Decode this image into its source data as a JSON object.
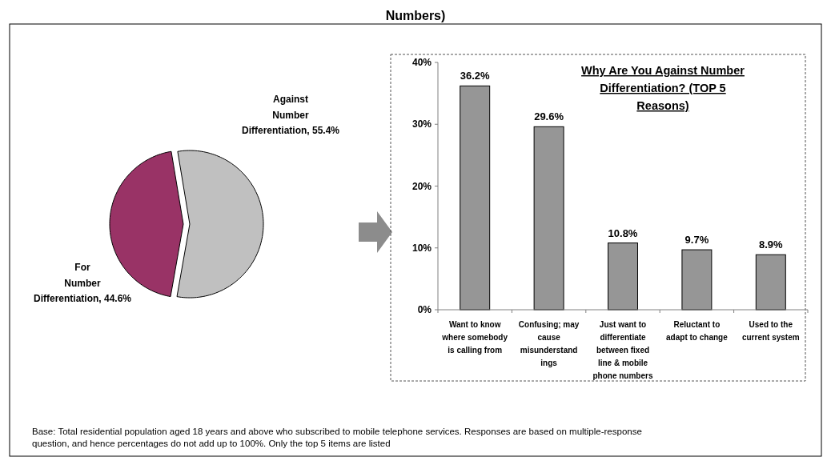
{
  "chart_data": [
    {
      "type": "pie",
      "annotations": [
        "Numbers)"
      ],
      "categories": [
        "For Number Differentiation",
        "Against Number Differentiation"
      ],
      "values": [
        44.6,
        55.4
      ],
      "value_labels": [
        "44.6%",
        "55.4%"
      ],
      "colors": [
        "#993366",
        "#c0c0c0"
      ]
    },
    {
      "type": "bar",
      "title": "Why Are You Against Number Differentiation? (TOP 5 Reasons)",
      "categories": [
        "Want to know where somebody is calling from",
        "Confusing; may cause misunderstand ings",
        "Just want to differentiate between fixed line & mobile phone numbers",
        "Reluctant to adapt to change",
        "Used to the current system"
      ],
      "values": [
        36.2,
        29.6,
        10.8,
        9.7,
        8.9
      ],
      "value_labels": [
        "36.2%",
        "29.6%",
        "10.8%",
        "9.7%",
        "8.9%"
      ],
      "color": "#969696",
      "ylim": [
        0,
        40
      ],
      "yticks": [
        {
          "value": 0,
          "label": "0%"
        },
        {
          "value": 10,
          "label": "10%"
        },
        {
          "value": 20,
          "label": "20%"
        },
        {
          "value": 30,
          "label": "30%"
        },
        {
          "value": 40,
          "label": "40%"
        }
      ],
      "grid": false,
      "annotations": [
        "Base: Total residential population aged 18 years and above who subscribed to mobile telephone services. Responses are based on multiple-response question, and hence percentages do not add up to 100%. Only the top 5 items are listed"
      ]
    }
  ]
}
